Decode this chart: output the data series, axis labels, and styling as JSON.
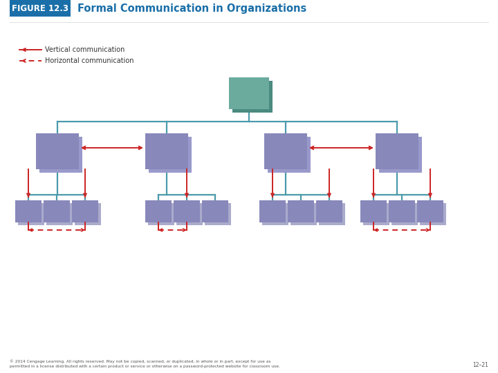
{
  "title_box_color": "#1a6fa8",
  "title_box_text": "FIGURE 12.3",
  "title_text": "Formal Communication in Organizations",
  "title_text_color": "#1a6fa8",
  "title_box_text_color": "#ffffff",
  "background_color": "#ffffff",
  "top_box_color": "#6aab9e",
  "top_box_shadow_color": "#4a8a80",
  "mid_box_color": "#8888bb",
  "mid_box_shadow_color": "#9999cc",
  "bot_box_color": "#8888bb",
  "bot_box_shadow_color": "#aaaacc",
  "teal_line_color": "#4a9aaa",
  "red_color": "#cc2222",
  "footer_text": "© 2014 Cengage Learning. All rights reserved. May not be copied, scanned, or duplicated, in whole or in part, except for use as\npermitted in a license distributed with a certain product or service or otherwise on a password-protected website for classroom use.",
  "footer_right": "12–21",
  "footer_color": "#555555",
  "legend_vert": "Vertical communication",
  "legend_horiz": "Horizontal communication"
}
